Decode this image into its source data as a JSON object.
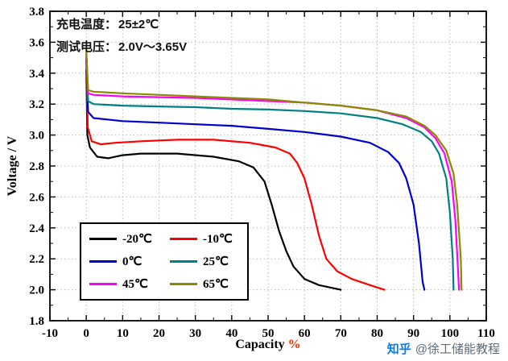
{
  "annotation": {
    "line1_label": "充电温度：",
    "line1_value": "25±2℃",
    "line2_label": "测试电压：",
    "line2_value": "2.0V～3.65V"
  },
  "watermark": {
    "brand": "知乎",
    "handle": "@徐工储能教程"
  },
  "chart_data": {
    "type": "line",
    "title": "",
    "xlabel": "Capacity",
    "xlabel_unit": "%",
    "ylabel": "Voltage / V",
    "xlim": [
      -10,
      110
    ],
    "ylim": [
      1.8,
      3.8
    ],
    "grid": true,
    "legend_position": "lower-left",
    "xtick_values": [
      -10,
      0,
      10,
      20,
      30,
      40,
      50,
      60,
      70,
      80,
      90,
      100,
      110
    ],
    "xtick_labels": [
      "-10",
      "0",
      "10",
      "20",
      "30",
      "40",
      "50",
      "60",
      "70",
      "80",
      "90",
      "100",
      "110"
    ],
    "ytick_values": [
      1.8,
      2.0,
      2.2,
      2.4,
      2.6,
      2.8,
      3.0,
      3.2,
      3.4,
      3.6,
      3.8
    ],
    "ytick_labels": [
      "1.8",
      "2.0",
      "2.2",
      "2.4",
      "2.6",
      "2.8",
      "3.0",
      "3.2",
      "3.4",
      "3.6",
      "3.8"
    ],
    "series": [
      {
        "name": "-20℃",
        "color": "#000000",
        "points": [
          [
            0,
            3.42
          ],
          [
            0.3,
            3.0
          ],
          [
            1,
            2.92
          ],
          [
            3,
            2.86
          ],
          [
            6,
            2.85
          ],
          [
            10,
            2.87
          ],
          [
            15,
            2.88
          ],
          [
            25,
            2.88
          ],
          [
            35,
            2.86
          ],
          [
            42,
            2.83
          ],
          [
            46,
            2.79
          ],
          [
            49,
            2.7
          ],
          [
            51,
            2.55
          ],
          [
            53,
            2.38
          ],
          [
            55,
            2.25
          ],
          [
            57,
            2.15
          ],
          [
            60,
            2.07
          ],
          [
            64,
            2.03
          ],
          [
            68,
            2.01
          ],
          [
            70,
            2.0
          ]
        ]
      },
      {
        "name": "-10℃",
        "color": "#ff0000",
        "points": [
          [
            0,
            3.48
          ],
          [
            0.4,
            3.05
          ],
          [
            1.5,
            2.96
          ],
          [
            4,
            2.94
          ],
          [
            8,
            2.95
          ],
          [
            15,
            2.96
          ],
          [
            25,
            2.97
          ],
          [
            35,
            2.97
          ],
          [
            45,
            2.95
          ],
          [
            52,
            2.92
          ],
          [
            56,
            2.88
          ],
          [
            58,
            2.82
          ],
          [
            60,
            2.72
          ],
          [
            62,
            2.55
          ],
          [
            64,
            2.35
          ],
          [
            66,
            2.2
          ],
          [
            69,
            2.12
          ],
          [
            73,
            2.07
          ],
          [
            78,
            2.03
          ],
          [
            82,
            2.0
          ]
        ]
      },
      {
        "name": "0℃",
        "color": "#0000cc",
        "points": [
          [
            0,
            3.5
          ],
          [
            0.5,
            3.15
          ],
          [
            2,
            3.11
          ],
          [
            10,
            3.09
          ],
          [
            20,
            3.08
          ],
          [
            30,
            3.07
          ],
          [
            40,
            3.06
          ],
          [
            50,
            3.04
          ],
          [
            60,
            3.02
          ],
          [
            70,
            2.99
          ],
          [
            78,
            2.95
          ],
          [
            83,
            2.89
          ],
          [
            86,
            2.82
          ],
          [
            88,
            2.72
          ],
          [
            90,
            2.55
          ],
          [
            91.5,
            2.3
          ],
          [
            92.5,
            2.05
          ],
          [
            93,
            2.0
          ]
        ]
      },
      {
        "name": "25℃",
        "color": "#008080",
        "points": [
          [
            0,
            3.52
          ],
          [
            0.5,
            3.22
          ],
          [
            2,
            3.2
          ],
          [
            10,
            3.19
          ],
          [
            20,
            3.185
          ],
          [
            30,
            3.18
          ],
          [
            40,
            3.17
          ],
          [
            50,
            3.165
          ],
          [
            60,
            3.155
          ],
          [
            70,
            3.14
          ],
          [
            80,
            3.11
          ],
          [
            87,
            3.07
          ],
          [
            92,
            3.02
          ],
          [
            95,
            2.96
          ],
          [
            97,
            2.88
          ],
          [
            99,
            2.72
          ],
          [
            100,
            2.5
          ],
          [
            100.8,
            2.2
          ],
          [
            101,
            2.0
          ]
        ]
      },
      {
        "name": "45℃",
        "color": "#ff00ff",
        "points": [
          [
            0,
            3.54
          ],
          [
            0.5,
            3.27
          ],
          [
            2,
            3.26
          ],
          [
            10,
            3.25
          ],
          [
            20,
            3.245
          ],
          [
            30,
            3.24
          ],
          [
            40,
            3.23
          ],
          [
            50,
            3.22
          ],
          [
            60,
            3.21
          ],
          [
            70,
            3.19
          ],
          [
            80,
            3.16
          ],
          [
            88,
            3.11
          ],
          [
            93,
            3.05
          ],
          [
            96,
            2.98
          ],
          [
            98.5,
            2.88
          ],
          [
            100.5,
            2.7
          ],
          [
            101.5,
            2.45
          ],
          [
            102.3,
            2.1
          ],
          [
            102.5,
            2.0
          ]
        ]
      },
      {
        "name": "65℃",
        "color": "#8b8b00",
        "points": [
          [
            0,
            3.55
          ],
          [
            0.5,
            3.29
          ],
          [
            2,
            3.28
          ],
          [
            10,
            3.27
          ],
          [
            20,
            3.26
          ],
          [
            30,
            3.25
          ],
          [
            40,
            3.24
          ],
          [
            50,
            3.23
          ],
          [
            60,
            3.21
          ],
          [
            70,
            3.19
          ],
          [
            80,
            3.16
          ],
          [
            88,
            3.12
          ],
          [
            93,
            3.06
          ],
          [
            96,
            3.0
          ],
          [
            99,
            2.9
          ],
          [
            101,
            2.75
          ],
          [
            102,
            2.55
          ],
          [
            103,
            2.2
          ],
          [
            103.2,
            2.0
          ]
        ]
      }
    ]
  }
}
